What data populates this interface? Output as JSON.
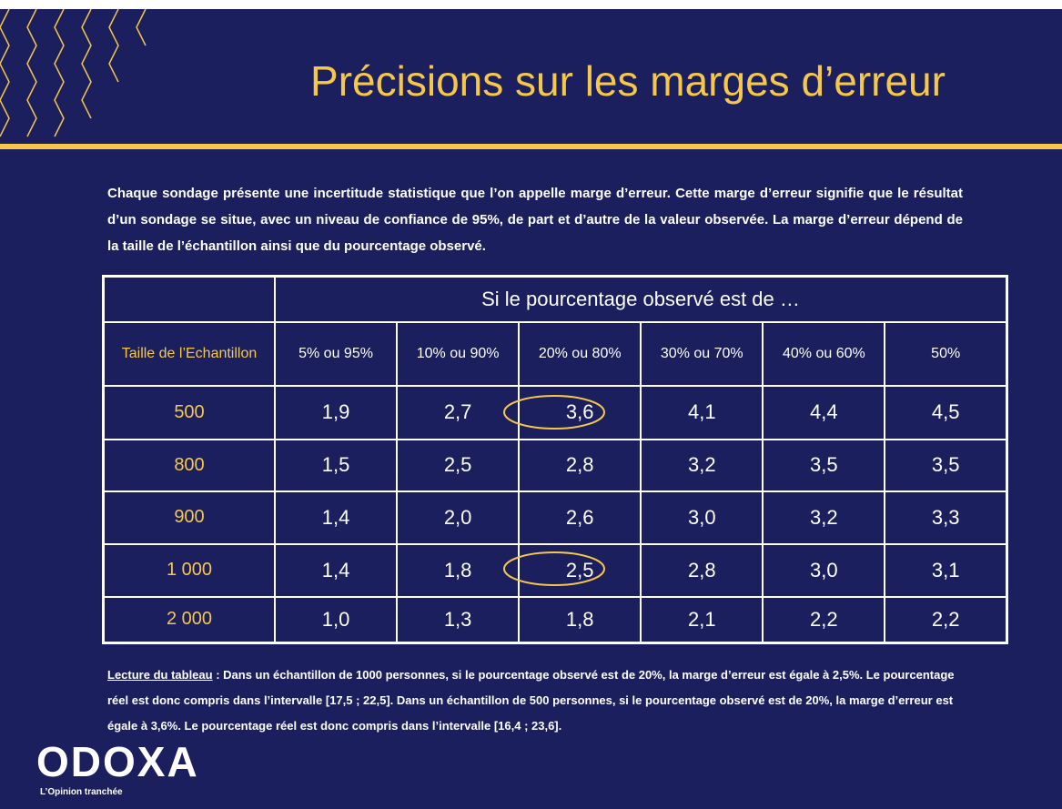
{
  "header": {
    "title": "Précisions sur les marges d’erreur"
  },
  "intro": {
    "text": "Chaque sondage présente une incertitude statistique que l’on appelle marge d’erreur. Cette marge d’erreur signifie que le résultat d’un sondage se situe, avec un niveau de confiance de 95%, de part et d’autre de la valeur observée. La marge d’erreur dépend de la taille de l’échantillon ainsi que du pourcentage observé."
  },
  "table": {
    "caption": "Si le pourcentage observé est de …",
    "row_header": "Taille de l’Echantillon",
    "columns": [
      "5% ou 95%",
      "10% ou 90%",
      "20% ou 80%",
      "30% ou 70%",
      "40% ou 60%",
      "50%"
    ],
    "rows": [
      {
        "label": "500",
        "values": [
          "1,9",
          "2,7",
          "3,6",
          "4,1",
          "4,4",
          "4,5"
        ]
      },
      {
        "label": "800",
        "values": [
          "1,5",
          "2,5",
          "2,8",
          "3,2",
          "3,5",
          "3,5"
        ]
      },
      {
        "label": "900",
        "values": [
          "1,4",
          "2,0",
          "2,6",
          "3,0",
          "3,2",
          "3,3"
        ]
      },
      {
        "label": "1 000",
        "values": [
          "1,4",
          "1,8",
          "2,5",
          "2,8",
          "3,0",
          "3,1"
        ]
      },
      {
        "label": "2 000",
        "values": [
          "1,0",
          "1,3",
          "1,8",
          "2,1",
          "2,2",
          "2,2"
        ]
      }
    ]
  },
  "footnote": {
    "label": "Lecture du tableau",
    "text": " : Dans un échantillon de 1000 personnes, si le pourcentage observé est de 20%, la marge d’erreur est égale à 2,5%. Le pourcentage réel est donc compris dans l’intervalle [17,5 ; 22,5]. Dans un échantillon de 500 personnes, si le pourcentage observé est de 20%, la marge d’erreur est égale à 3,6%. Le pourcentage réel est donc compris dans l’intervalle [16,4 ; 23,6]."
  },
  "logo": {
    "name": "ODOXA",
    "tagline": "L’Opinion tranchée"
  }
}
